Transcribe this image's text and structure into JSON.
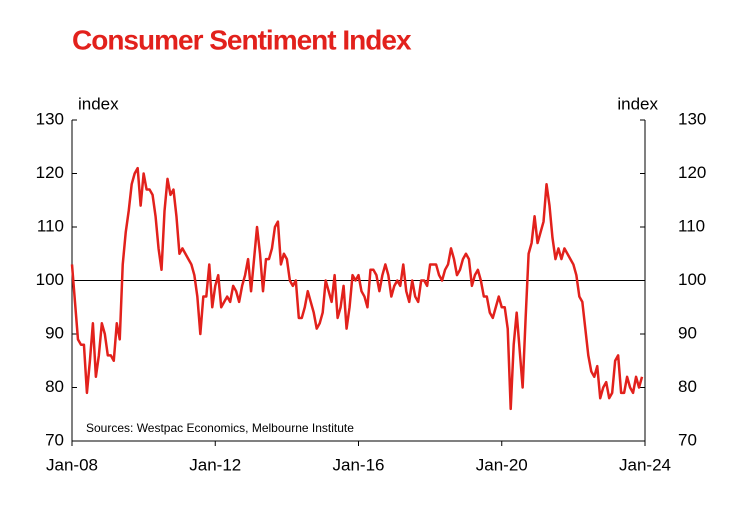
{
  "chart_data": {
    "type": "line",
    "title": "Consumer Sentiment Index",
    "ylabel": "index",
    "y2label": "index",
    "annotation": "Sources: Westpac Economics, Melbourne Institute",
    "ylim": [
      70,
      130
    ],
    "yticks": [
      70,
      80,
      90,
      100,
      110,
      120,
      130
    ],
    "y2lim": [
      70,
      130
    ],
    "y2ticks": [
      70,
      80,
      90,
      100,
      110,
      120,
      130
    ],
    "xlim": [
      "Jan-08",
      "Jan-24"
    ],
    "xticks": [
      "Jan-08",
      "Jan-12",
      "Jan-16",
      "Jan-20",
      "Jan-24"
    ],
    "hline": 100,
    "x": [
      "Jan-08",
      "Feb-08",
      "Mar-08",
      "Apr-08",
      "May-08",
      "Jun-08",
      "Jul-08",
      "Aug-08",
      "Sep-08",
      "Oct-08",
      "Nov-08",
      "Dec-08",
      "Jan-09",
      "Feb-09",
      "Mar-09",
      "Apr-09",
      "May-09",
      "Jun-09",
      "Jul-09",
      "Aug-09",
      "Sep-09",
      "Oct-09",
      "Nov-09",
      "Dec-09",
      "Jan-10",
      "Feb-10",
      "Mar-10",
      "Apr-10",
      "May-10",
      "Jun-10",
      "Jul-10",
      "Aug-10",
      "Sep-10",
      "Oct-10",
      "Nov-10",
      "Dec-10",
      "Jan-11",
      "Feb-11",
      "Mar-11",
      "Apr-11",
      "May-11",
      "Jun-11",
      "Jul-11",
      "Aug-11",
      "Sep-11",
      "Oct-11",
      "Nov-11",
      "Dec-11",
      "Jan-12",
      "Feb-12",
      "Mar-12",
      "Apr-12",
      "May-12",
      "Jun-12",
      "Jul-12",
      "Aug-12",
      "Sep-12",
      "Oct-12",
      "Nov-12",
      "Dec-12",
      "Jan-13",
      "Feb-13",
      "Mar-13",
      "Apr-13",
      "May-13",
      "Jun-13",
      "Jul-13",
      "Aug-13",
      "Sep-13",
      "Oct-13",
      "Nov-13",
      "Dec-13",
      "Jan-14",
      "Feb-14",
      "Mar-14",
      "Apr-14",
      "May-14",
      "Jun-14",
      "Jul-14",
      "Aug-14",
      "Sep-14",
      "Oct-14",
      "Nov-14",
      "Dec-14",
      "Jan-15",
      "Feb-15",
      "Mar-15",
      "Apr-15",
      "May-15",
      "Jun-15",
      "Jul-15",
      "Aug-15",
      "Sep-15",
      "Oct-15",
      "Nov-15",
      "Dec-15",
      "Jan-16",
      "Feb-16",
      "Mar-16",
      "Apr-16",
      "May-16",
      "Jun-16",
      "Jul-16",
      "Aug-16",
      "Sep-16",
      "Oct-16",
      "Nov-16",
      "Dec-16",
      "Jan-17",
      "Feb-17",
      "Mar-17",
      "Apr-17",
      "May-17",
      "Jun-17",
      "Jul-17",
      "Aug-17",
      "Sep-17",
      "Oct-17",
      "Nov-17",
      "Dec-17",
      "Jan-18",
      "Feb-18",
      "Mar-18",
      "Apr-18",
      "May-18",
      "Jun-18",
      "Jul-18",
      "Aug-18",
      "Sep-18",
      "Oct-18",
      "Nov-18",
      "Dec-18",
      "Jan-19",
      "Feb-19",
      "Mar-19",
      "Apr-19",
      "May-19",
      "Jun-19",
      "Jul-19",
      "Aug-19",
      "Sep-19",
      "Oct-19",
      "Nov-19",
      "Dec-19",
      "Jan-20",
      "Feb-20",
      "Mar-20",
      "Apr-20",
      "May-20",
      "Jun-20",
      "Jul-20",
      "Aug-20",
      "Sep-20",
      "Oct-20",
      "Nov-20",
      "Dec-20",
      "Jan-21",
      "Feb-21",
      "Mar-21",
      "Apr-21",
      "May-21",
      "Jun-21",
      "Jul-21",
      "Aug-21",
      "Sep-21",
      "Oct-21",
      "Nov-21",
      "Dec-21",
      "Jan-22",
      "Feb-22",
      "Mar-22",
      "Apr-22",
      "May-22",
      "Jun-22",
      "Jul-22",
      "Aug-22",
      "Sep-22",
      "Oct-22",
      "Nov-22",
      "Dec-22",
      "Jan-23",
      "Feb-23",
      "Mar-23",
      "Apr-23",
      "May-23",
      "Jun-23",
      "Jul-23",
      "Aug-23",
      "Sep-23",
      "Oct-23",
      "Nov-23",
      "Dec-23"
    ],
    "series": [
      {
        "color": "#e2211c",
        "values": [
          103,
          96,
          89,
          88,
          88,
          79,
          85,
          92,
          82,
          86,
          92,
          90,
          86,
          86,
          85,
          92,
          89,
          103,
          109,
          113,
          118,
          120,
          121,
          114,
          120,
          117,
          117,
          116,
          112,
          106,
          102,
          113,
          119,
          116,
          117,
          112,
          105,
          106,
          105,
          104,
          103,
          101,
          97,
          90,
          97,
          97,
          103,
          95,
          99,
          101,
          95,
          96,
          97,
          96,
          99,
          98,
          96,
          99,
          101,
          104,
          98,
          104,
          110,
          105,
          98,
          104,
          104,
          106,
          110,
          111,
          103,
          105,
          104,
          100,
          99,
          100,
          93,
          93,
          95,
          98,
          96,
          94,
          91,
          92,
          94,
          100,
          98,
          96,
          101,
          93,
          95,
          99,
          91,
          95,
          101,
          100,
          101,
          98,
          97,
          95,
          102,
          102,
          101,
          98,
          101,
          103,
          101,
          97,
          99,
          100,
          99,
          103,
          98,
          96,
          100,
          97,
          96,
          100,
          100,
          99,
          103,
          103,
          103,
          101,
          100,
          102,
          103,
          106,
          104,
          101,
          102,
          104,
          105,
          104,
          99,
          101,
          102,
          100,
          97,
          97,
          94,
          93,
          95,
          97,
          95,
          95,
          91,
          76,
          88,
          94,
          87,
          80,
          93,
          105,
          107,
          112,
          107,
          109,
          111,
          118,
          114,
          108,
          104,
          106,
          104,
          106,
          105,
          104,
          103,
          101,
          97,
          96,
          91,
          86,
          83,
          82,
          84,
          78,
          80,
          81,
          78,
          79,
          85,
          86,
          79,
          79,
          82,
          80,
          79,
          82,
          80,
          82
        ]
      }
    ]
  }
}
